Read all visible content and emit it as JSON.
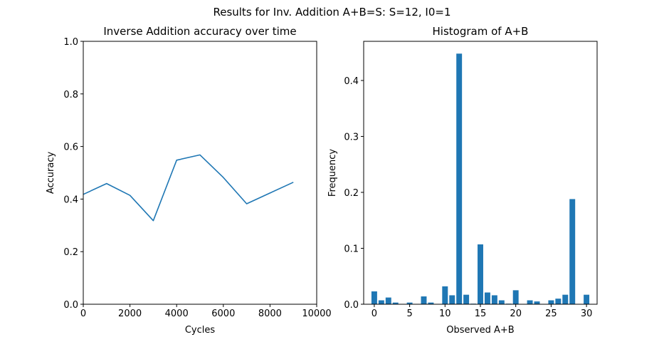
{
  "figure": {
    "suptitle": "Results for Inv. Addition A+B=S: S=12, I0=1"
  },
  "chart_data": [
    {
      "type": "line",
      "title": "Inverse Addition accuracy over time",
      "xlabel": "Cycles",
      "ylabel": "Accuracy",
      "xlim": [
        0,
        10000
      ],
      "ylim": [
        0,
        1.0
      ],
      "xticks": [
        0,
        2000,
        4000,
        6000,
        8000,
        10000
      ],
      "yticks": [
        0.0,
        0.2,
        0.4,
        0.6,
        0.8,
        1.0
      ],
      "ytick_labels": [
        "0.0",
        "0.2",
        "0.4",
        "0.6",
        "0.8",
        "1.0"
      ],
      "grid": false,
      "color": "#1f77b4",
      "series": [
        {
          "x": [
            0,
            1000,
            2000,
            3000,
            4000,
            5000,
            6000,
            7000,
            8000,
            9000
          ],
          "y": [
            0.418,
            0.459,
            0.414,
            0.318,
            0.548,
            0.568,
            0.482,
            0.382,
            0.423,
            0.464
          ]
        }
      ]
    },
    {
      "type": "bar",
      "title": "Histogram of A+B",
      "xlabel": "Observed A+B",
      "ylabel": "Frequency",
      "xlim": [
        -1.5,
        31.5
      ],
      "ylim": [
        0,
        0.47
      ],
      "xticks": [
        0,
        5,
        10,
        15,
        20,
        25,
        30
      ],
      "yticks": [
        0.0,
        0.1,
        0.2,
        0.3,
        0.4
      ],
      "ytick_labels": [
        "0.0",
        "0.1",
        "0.2",
        "0.3",
        "0.4"
      ],
      "grid": false,
      "color": "#1f77b4",
      "categories": [
        0,
        1,
        2,
        3,
        5,
        7,
        8,
        10,
        11,
        12,
        13,
        14,
        15,
        16,
        17,
        18,
        19,
        20,
        22,
        23,
        25,
        26,
        27,
        28,
        30
      ],
      "values": [
        0.023,
        0.007,
        0.012,
        0.003,
        0.003,
        0.014,
        0.003,
        0.032,
        0.016,
        0.448,
        0.017,
        0.001,
        0.107,
        0.021,
        0.016,
        0.007,
        0.001,
        0.025,
        0.007,
        0.005,
        0.007,
        0.01,
        0.017,
        0.188,
        0.017
      ]
    }
  ]
}
